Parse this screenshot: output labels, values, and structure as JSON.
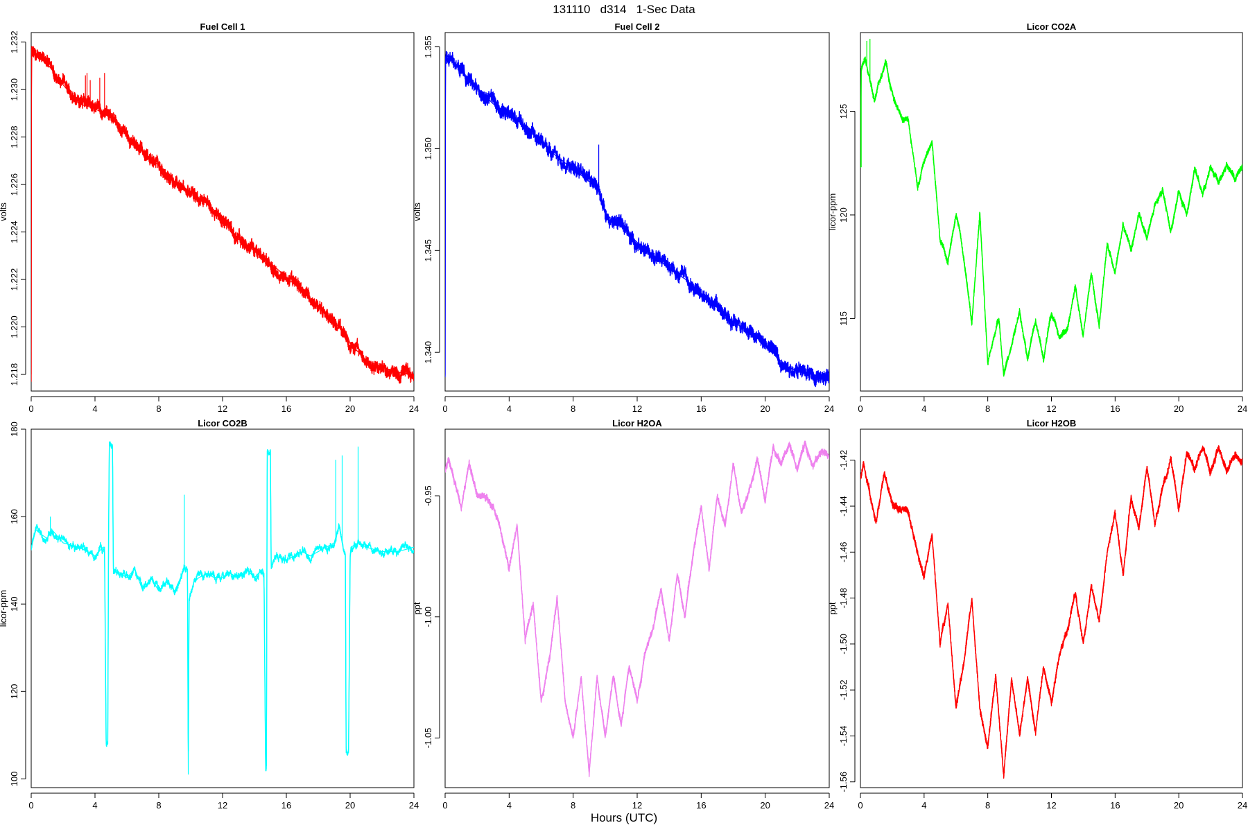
{
  "page": {
    "title": "131110   d314   1-Sec Data",
    "xlabel": "Hours (UTC)"
  },
  "chart_data": [
    {
      "type": "line",
      "title": "Fuel Cell 1",
      "ylabel": "volts",
      "color": "#ff0000",
      "xlim": [
        0,
        24
      ],
      "ylim": [
        1.2173,
        1.2324
      ],
      "xticks": [
        "0",
        "4",
        "8",
        "12",
        "16",
        "20",
        "24"
      ],
      "yticks": [
        "1.218",
        "1.220",
        "1.222",
        "1.224",
        "1.226",
        "1.228",
        "1.230",
        "1.232"
      ],
      "noise": 0.00022,
      "wiggle": 0.0001,
      "series": [
        {
          "x": [
            0,
            0.02,
            0.04,
            0.3,
            1,
            2,
            3,
            4,
            5,
            6,
            7,
            8,
            9,
            10,
            11,
            12,
            13,
            14,
            15,
            16,
            17,
            18,
            19,
            19.8,
            20,
            21,
            22,
            23,
            24
          ],
          "y": [
            1.218,
            1.2317,
            1.2316,
            1.2315,
            1.2311,
            1.2302,
            1.2294,
            1.2292,
            1.2288,
            1.2281,
            1.2274,
            1.2268,
            1.2261,
            1.2256,
            1.2252,
            1.2246,
            1.2237,
            1.2232,
            1.2227,
            1.2221,
            1.2215,
            1.2209,
            1.2202,
            1.2197,
            1.2193,
            1.2186,
            1.2183,
            1.2181,
            1.218
          ]
        }
      ],
      "spikes": [
        {
          "x": 3.4,
          "y": 1.2306
        },
        {
          "x": 3.5,
          "y": 1.2307
        },
        {
          "x": 3.7,
          "y": 1.2304
        },
        {
          "x": 4.3,
          "y": 1.2305
        },
        {
          "x": 4.6,
          "y": 1.2307
        }
      ]
    },
    {
      "type": "line",
      "title": "Fuel Cell 2",
      "ylabel": "volts",
      "color": "#0000ff",
      "xlim": [
        0,
        24
      ],
      "ylim": [
        1.3381,
        1.3557
      ],
      "xticks": [
        "0",
        "4",
        "8",
        "12",
        "16",
        "20",
        "24"
      ],
      "yticks": [
        "1.340",
        "1.345",
        "1.350",
        "1.355"
      ],
      "noise": 0.00028,
      "wiggle": 0.00012,
      "series": [
        {
          "x": [
            0,
            0.02,
            0.05,
            0.4,
            1,
            2,
            3,
            4,
            5,
            6,
            7,
            8,
            9,
            9.6,
            10,
            11,
            12,
            13,
            14,
            15,
            16,
            17,
            18,
            19,
            20,
            20.5,
            21,
            22,
            23,
            24
          ],
          "y": [
            1.3389,
            1.3544,
            1.3546,
            1.3544,
            1.3538,
            1.353,
            1.3522,
            1.3517,
            1.3511,
            1.3503,
            1.3496,
            1.349,
            1.3484,
            1.3479,
            1.3468,
            1.3462,
            1.3454,
            1.3448,
            1.3441,
            1.3436,
            1.3429,
            1.3422,
            1.3415,
            1.341,
            1.3404,
            1.34,
            1.3394,
            1.3391,
            1.3389,
            1.3387
          ]
        }
      ],
      "spikes": [
        {
          "x": 9.6,
          "y": 1.3502
        }
      ]
    },
    {
      "type": "line",
      "title": "Licor CO2A",
      "ylabel": "licor-ppm",
      "color": "#00ff00",
      "xlim": [
        0,
        24
      ],
      "ylim": [
        111.5,
        128.8
      ],
      "xticks": [
        "0",
        "4",
        "8",
        "12",
        "16",
        "20",
        "24"
      ],
      "yticks": [
        "115",
        "120",
        "125"
      ],
      "noise": 0.12,
      "wiggle": 0.06,
      "series": [
        {
          "x": [
            0,
            0.05,
            0.3,
            0.6,
            0.9,
            1.1,
            1.6,
            2,
            2.6,
            3,
            3.6,
            4,
            4.5,
            5,
            5.5,
            6,
            6.2,
            7,
            7.5,
            8,
            8.7,
            9,
            10,
            10.5,
            11,
            11.5,
            12,
            12.5,
            13,
            13.5,
            14,
            14.5,
            15,
            15.5,
            16,
            16.5,
            17,
            17.5,
            18,
            18.5,
            19,
            19.5,
            20,
            20.5,
            21,
            21.5,
            22,
            22.5,
            23,
            23.5,
            24
          ],
          "y": [
            122.3,
            127.0,
            127.5,
            126.5,
            125.5,
            126.3,
            127.3,
            125.9,
            124.6,
            124.6,
            121.3,
            122.6,
            123.6,
            118.8,
            117.8,
            120.0,
            119.5,
            114.8,
            120.0,
            112.9,
            115.0,
            112.2,
            115.3,
            113.0,
            114.9,
            113.0,
            115.3,
            114.1,
            114.5,
            116.5,
            114.2,
            117.2,
            114.6,
            118.6,
            117.2,
            119.5,
            118.4,
            120.0,
            118.8,
            120.5,
            121.2,
            119.2,
            121.2,
            120.0,
            122.3,
            121.0,
            122.3,
            121.6,
            122.4,
            121.7,
            122.3
          ]
        }
      ],
      "spikes": [
        {
          "x": 0.05,
          "y": 122.3
        },
        {
          "x": 0.4,
          "y": 128.4
        },
        {
          "x": 0.6,
          "y": 128.5
        }
      ]
    },
    {
      "type": "line",
      "title": "Licor CO2B",
      "ylabel": "licor-ppm",
      "color": "#00ffff",
      "xlim": [
        0,
        24
      ],
      "ylim": [
        98,
        180
      ],
      "xticks": [
        "0",
        "4",
        "8",
        "12",
        "16",
        "20",
        "24"
      ],
      "yticks": [
        "100",
        "120",
        "140",
        "160",
        "180"
      ],
      "noise": 0.35,
      "wiggle": 0.5,
      "series": [
        {
          "x": [
            0,
            0.3,
            0.6,
            1,
            1.3,
            2,
            3,
            3.5,
            4,
            4.5,
            4.6,
            4.7,
            4.8,
            4.85,
            4.9,
            5.1,
            5.15,
            5.2,
            5.6,
            6,
            6.5,
            7,
            7.5,
            8,
            8.5,
            9,
            9.6,
            9.8,
            9.85,
            9.9,
            10.2,
            10.5,
            11,
            11.5,
            12,
            12.5,
            13,
            13.5,
            14,
            14.5,
            14.6,
            14.7,
            14.75,
            14.8,
            15,
            15.05,
            15.3,
            16,
            16.5,
            17,
            17.5,
            18,
            18.5,
            19,
            19.3,
            19.6,
            19.7,
            19.75,
            19.9,
            20.0,
            20.05,
            20.5,
            21,
            22,
            23,
            24
          ],
          "y": [
            153,
            157,
            156,
            155,
            157,
            154,
            153,
            152,
            151,
            153,
            153,
            108,
            108,
            154,
            177,
            176,
            148,
            148,
            147,
            146,
            148,
            143,
            146,
            143,
            145,
            143,
            148,
            148,
            101,
            141,
            145,
            146,
            147,
            146,
            146,
            147,
            146,
            148,
            146,
            148,
            147,
            103,
            103,
            175,
            175,
            148,
            151,
            150,
            151,
            152,
            151,
            152,
            153,
            154,
            158,
            152,
            151,
            106,
            106,
            151,
            153,
            154,
            153,
            152,
            152,
            153
          ]
        }
      ],
      "spikes": [
        {
          "x": 9.6,
          "y": 165
        },
        {
          "x": 19.1,
          "y": 173
        },
        {
          "x": 19.5,
          "y": 174
        },
        {
          "x": 20.5,
          "y": 176
        },
        {
          "x": 1.2,
          "y": 160
        }
      ]
    },
    {
      "type": "line",
      "title": "Licor H2OA",
      "ylabel": "ppt",
      "color": "#ee82ee",
      "xlim": [
        0,
        24
      ],
      "ylim": [
        -1.0705,
        -0.9225
      ],
      "xticks": [
        "0",
        "4",
        "8",
        "12",
        "16",
        "20",
        "24"
      ],
      "yticks": [
        "-0.95",
        "-1.00",
        "-1.05"
      ],
      "noise": 0.0012,
      "wiggle": 0.0006,
      "series": [
        {
          "x": [
            0,
            0.2,
            0.5,
            1,
            1.5,
            2,
            2.5,
            3,
            3.5,
            4,
            4.5,
            5,
            5.5,
            6,
            6.5,
            7,
            7.5,
            8,
            8.5,
            9,
            9.5,
            10,
            10.5,
            11,
            11.5,
            12,
            12.5,
            13,
            13.5,
            14,
            14.5,
            15,
            15.5,
            16,
            16.5,
            17,
            17.5,
            18,
            18.5,
            19,
            19.5,
            20,
            20.5,
            21,
            21.5,
            22,
            22.5,
            23,
            23.5,
            24
          ],
          "y": [
            -0.94,
            -0.935,
            -0.942,
            -0.955,
            -0.937,
            -0.95,
            -0.951,
            -0.954,
            -0.965,
            -0.98,
            -0.962,
            -1.009,
            -0.995,
            -1.035,
            -1.018,
            -0.992,
            -1.035,
            -1.05,
            -1.025,
            -1.065,
            -1.025,
            -1.05,
            -1.025,
            -1.045,
            -1.02,
            -1.035,
            -1.015,
            -1.005,
            -0.988,
            -1.01,
            -0.982,
            -1.0,
            -0.973,
            -0.955,
            -0.98,
            -0.95,
            -0.963,
            -0.937,
            -0.957,
            -0.948,
            -0.935,
            -0.952,
            -0.93,
            -0.937,
            -0.928,
            -0.94,
            -0.928,
            -0.938,
            -0.931,
            -0.934
          ]
        }
      ]
    },
    {
      "type": "line",
      "title": "Licor H2OB",
      "ylabel": "ppt",
      "color": "#ff0000",
      "xlim": [
        0,
        24
      ],
      "ylim": [
        -1.5625,
        -1.4065
      ],
      "xticks": [
        "0",
        "4",
        "8",
        "12",
        "16",
        "20",
        "24"
      ],
      "yticks": [
        "-1.42",
        "-1.44",
        "-1.46",
        "-1.48",
        "-1.50",
        "-1.52",
        "-1.54",
        "-1.56"
      ],
      "noise": 0.0013,
      "wiggle": 0.0006,
      "series": [
        {
          "x": [
            0,
            0.2,
            0.5,
            1,
            1.5,
            2,
            2.5,
            3,
            3.5,
            4,
            4.5,
            5,
            5.5,
            6,
            6.5,
            7,
            7.5,
            8,
            8.5,
            9,
            9.5,
            10,
            10.5,
            11,
            11.5,
            12,
            12.5,
            13,
            13.5,
            14,
            14.5,
            15,
            15.5,
            16,
            16.5,
            17,
            17.5,
            18,
            18.5,
            19,
            19.5,
            20,
            20.5,
            21,
            21.5,
            22,
            22.5,
            23,
            23.5,
            24
          ],
          "y": [
            -1.428,
            -1.422,
            -1.432,
            -1.447,
            -1.425,
            -1.439,
            -1.441,
            -1.443,
            -1.458,
            -1.471,
            -1.452,
            -1.5,
            -1.482,
            -1.528,
            -1.509,
            -1.48,
            -1.528,
            -1.545,
            -1.514,
            -1.557,
            -1.515,
            -1.54,
            -1.514,
            -1.538,
            -1.51,
            -1.525,
            -1.505,
            -1.494,
            -1.478,
            -1.5,
            -1.475,
            -1.49,
            -1.46,
            -1.443,
            -1.47,
            -1.436,
            -1.45,
            -1.423,
            -1.448,
            -1.432,
            -1.42,
            -1.441,
            -1.417,
            -1.424,
            -1.414,
            -1.425,
            -1.414,
            -1.425,
            -1.418,
            -1.422
          ]
        }
      ]
    }
  ]
}
